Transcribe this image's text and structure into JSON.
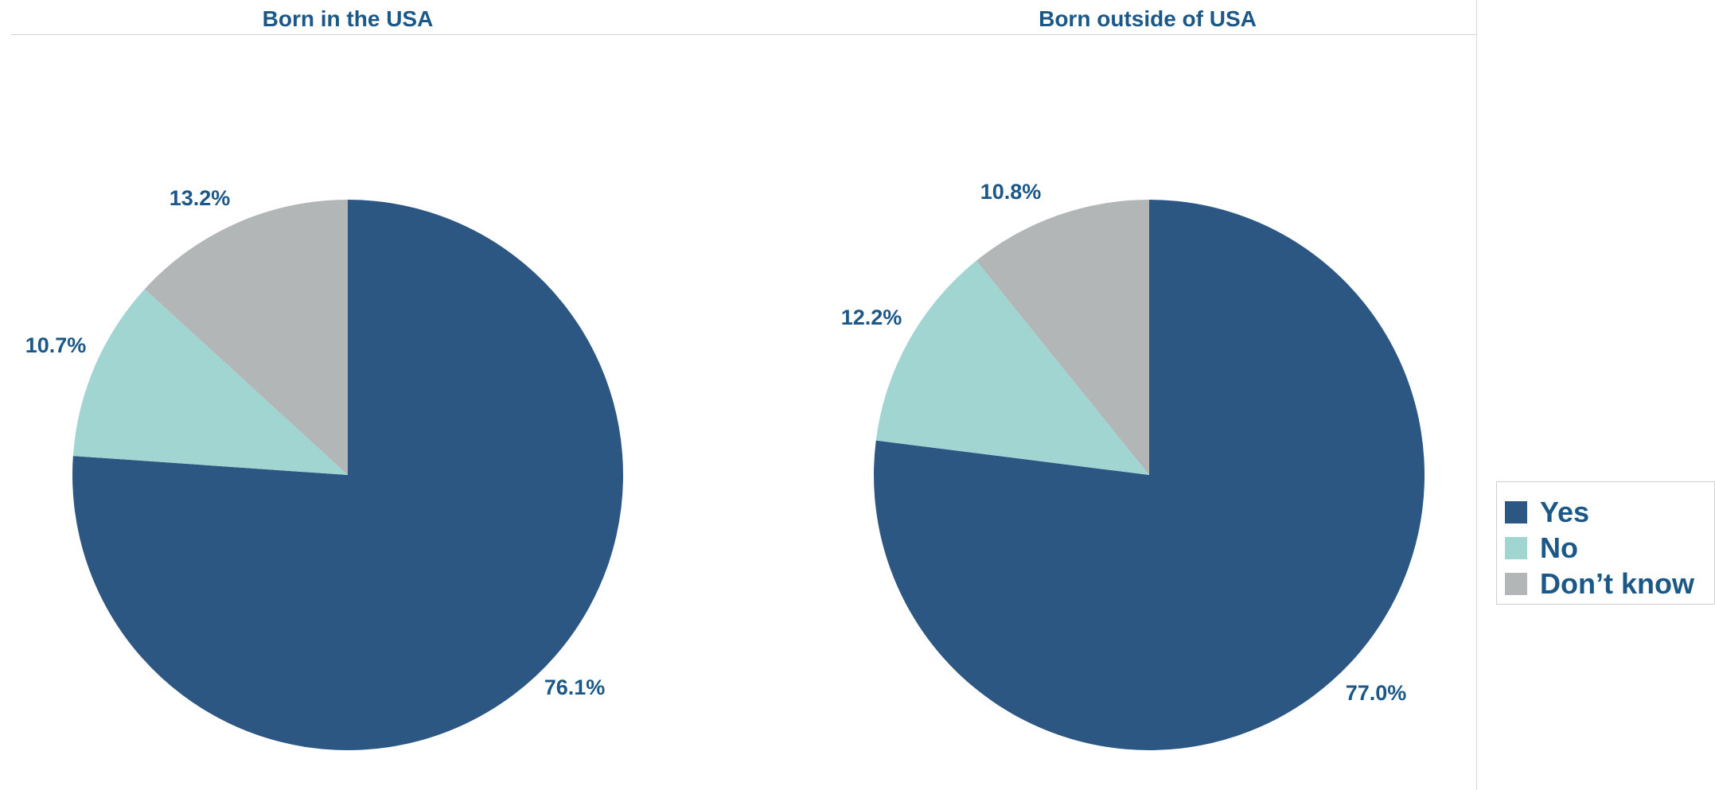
{
  "colors": {
    "Yes": "#2d5783",
    "No": "#a1d5d2",
    "Dont_know": "#b3b6b7",
    "label": "#1b5888"
  },
  "legend": {
    "items": [
      {
        "label": "Yes",
        "color": "#2d5783"
      },
      {
        "label": "No",
        "color": "#a1d5d2"
      },
      {
        "label": "Don’t know",
        "color": "#b3b6b7"
      }
    ]
  },
  "chart_data": [
    {
      "type": "pie",
      "title": "Born in the USA",
      "categories": [
        "Yes",
        "No",
        "Don’t know"
      ],
      "values": [
        76.1,
        10.7,
        13.2
      ],
      "labels": [
        "76.1%",
        "10.7%",
        "13.2%"
      ],
      "legend_position": "right"
    },
    {
      "type": "pie",
      "title": "Born outside of USA",
      "categories": [
        "Yes",
        "No",
        "Don’t know"
      ],
      "values": [
        77.0,
        12.2,
        10.8
      ],
      "labels": [
        "77.0%",
        "12.2%",
        "10.8%"
      ],
      "legend_position": "right"
    }
  ]
}
